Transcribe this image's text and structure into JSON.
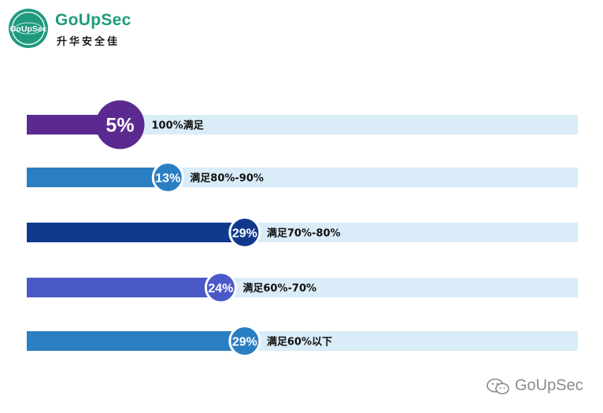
{
  "logo": {
    "brand": "GoUpSec",
    "subtitle": "升华安全佳",
    "seal_text": "GoUpSec",
    "primary_color": "#1f9a7e"
  },
  "chart_data": {
    "type": "bar",
    "orientation": "horizontal",
    "unit": "%",
    "xlim": [
      0,
      100
    ],
    "grid": false,
    "legend": "none",
    "categories": [
      "100%满足",
      "满足80%-90%",
      "满足70%-80%",
      "满足60%-70%",
      "满足60%以下"
    ],
    "values": [
      5,
      13,
      29,
      24,
      29
    ],
    "value_labels": [
      "5%",
      "13%",
      "29%",
      "24%",
      "29%"
    ],
    "bar_colors": [
      "#5b2a90",
      "#2a7ec2",
      "#0f3a8c",
      "#4a58c8",
      "#2a7ec2"
    ],
    "track_color": "#d9ecf8"
  },
  "watermark": {
    "text": "GoUpSec",
    "icon": "wechat-icon"
  }
}
